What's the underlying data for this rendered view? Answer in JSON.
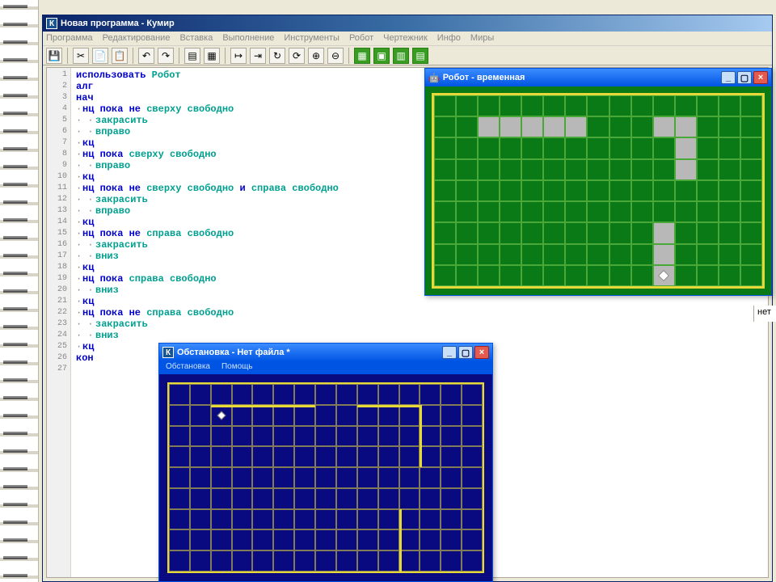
{
  "main": {
    "title": "Новая программа - Кумир",
    "icon_letter": "К",
    "menus": [
      "Программа",
      "Редактирование",
      "Вставка",
      "Выполнение",
      "Инструменты",
      "Робот",
      "Чертежник",
      "Инфо",
      "Миры"
    ]
  },
  "code": {
    "lines": [
      {
        "n": 1,
        "dot": "",
        "tokens": [
          {
            "t": "использовать ",
            "c": "kw-blue"
          },
          {
            "t": "Робот",
            "c": "kw-cyan"
          }
        ]
      },
      {
        "n": 2,
        "dot": "",
        "tokens": [
          {
            "t": "алг",
            "c": "kw-blue"
          }
        ]
      },
      {
        "n": 3,
        "dot": "",
        "tokens": [
          {
            "t": "нач",
            "c": "kw-blue"
          }
        ]
      },
      {
        "n": 4,
        "dot": "·",
        "tokens": [
          {
            "t": "нц пока не ",
            "c": "kw-blue"
          },
          {
            "t": "сверху свободно",
            "c": "kw-cyan"
          }
        ]
      },
      {
        "n": 5,
        "dot": "· ·",
        "tokens": [
          {
            "t": "закрасить",
            "c": "kw-cyan"
          }
        ]
      },
      {
        "n": 6,
        "dot": "· ·",
        "tokens": [
          {
            "t": "вправо",
            "c": "kw-cyan"
          }
        ]
      },
      {
        "n": 7,
        "dot": "·",
        "tokens": [
          {
            "t": "кц",
            "c": "kw-blue"
          }
        ]
      },
      {
        "n": 8,
        "dot": "·",
        "tokens": [
          {
            "t": "нц пока ",
            "c": "kw-blue"
          },
          {
            "t": "сверху свободно",
            "c": "kw-cyan"
          }
        ]
      },
      {
        "n": 9,
        "dot": "· ·",
        "tokens": [
          {
            "t": "вправо",
            "c": "kw-cyan"
          }
        ]
      },
      {
        "n": 10,
        "dot": "·",
        "tokens": [
          {
            "t": "кц",
            "c": "kw-blue"
          }
        ]
      },
      {
        "n": 11,
        "dot": "·",
        "tokens": [
          {
            "t": "нц пока не ",
            "c": "kw-blue"
          },
          {
            "t": "сверху свободно ",
            "c": "kw-cyan"
          },
          {
            "t": "и ",
            "c": "kw-blue"
          },
          {
            "t": "справа свободно",
            "c": "kw-cyan"
          }
        ]
      },
      {
        "n": 12,
        "dot": "· ·",
        "tokens": [
          {
            "t": "закрасить",
            "c": "kw-cyan"
          }
        ]
      },
      {
        "n": 13,
        "dot": "· ·",
        "tokens": [
          {
            "t": "вправо",
            "c": "kw-cyan"
          }
        ]
      },
      {
        "n": 14,
        "dot": "·",
        "tokens": [
          {
            "t": "кц",
            "c": "kw-blue"
          }
        ]
      },
      {
        "n": 15,
        "dot": "·",
        "tokens": [
          {
            "t": "нц пока не ",
            "c": "kw-blue"
          },
          {
            "t": "справа свободно",
            "c": "kw-cyan"
          }
        ]
      },
      {
        "n": 16,
        "dot": "· ·",
        "tokens": [
          {
            "t": "закрасить",
            "c": "kw-cyan"
          }
        ]
      },
      {
        "n": 17,
        "dot": "· ·",
        "tokens": [
          {
            "t": "вниз",
            "c": "kw-cyan"
          }
        ]
      },
      {
        "n": 18,
        "dot": "·",
        "tokens": [
          {
            "t": "кц",
            "c": "kw-blue"
          }
        ]
      },
      {
        "n": 19,
        "dot": "·",
        "tokens": [
          {
            "t": "нц пока ",
            "c": "kw-blue"
          },
          {
            "t": "справа свободно",
            "c": "kw-cyan"
          }
        ]
      },
      {
        "n": 20,
        "dot": "· ·",
        "tokens": [
          {
            "t": "вниз",
            "c": "kw-cyan"
          }
        ]
      },
      {
        "n": 21,
        "dot": "·",
        "tokens": [
          {
            "t": "кц",
            "c": "kw-blue"
          }
        ]
      },
      {
        "n": 22,
        "dot": "·",
        "tokens": [
          {
            "t": "нц пока не ",
            "c": "kw-blue"
          },
          {
            "t": "справа свободно",
            "c": "kw-cyan"
          }
        ]
      },
      {
        "n": 23,
        "dot": "· ·",
        "tokens": [
          {
            "t": "закрасить",
            "c": "kw-cyan"
          }
        ]
      },
      {
        "n": 24,
        "dot": "· ·",
        "tokens": [
          {
            "t": "вниз",
            "c": "kw-cyan"
          }
        ]
      },
      {
        "n": 25,
        "dot": "·",
        "tokens": [
          {
            "t": "кц",
            "c": "kw-blue"
          }
        ]
      },
      {
        "n": 26,
        "dot": "",
        "tokens": [
          {
            "t": "кон",
            "c": "kw-blue"
          }
        ]
      },
      {
        "n": 27,
        "dot": "",
        "tokens": []
      }
    ]
  },
  "robot_window": {
    "title": "Робот - временная",
    "icon": "robot-icon",
    "grid": {
      "cols": 15,
      "rows": 9
    },
    "filled_cells": [
      {
        "r": 1,
        "c": 2
      },
      {
        "r": 1,
        "c": 3
      },
      {
        "r": 1,
        "c": 4
      },
      {
        "r": 1,
        "c": 5
      },
      {
        "r": 1,
        "c": 6
      },
      {
        "r": 1,
        "c": 10
      },
      {
        "r": 1,
        "c": 11
      },
      {
        "r": 2,
        "c": 11
      },
      {
        "r": 3,
        "c": 11
      },
      {
        "r": 6,
        "c": 10
      },
      {
        "r": 7,
        "c": 10
      },
      {
        "r": 8,
        "c": 10
      }
    ],
    "diamond": {
      "r": 8,
      "c": 10
    },
    "colors": {
      "bg": "#0a7a16",
      "border": "#e6d838",
      "gridline": "#4aa838",
      "fill": "#b8b8b8"
    }
  },
  "obst_window": {
    "title": "Обстановка - Нет файла *",
    "icon_letter": "К",
    "menus": [
      "Обстановка",
      "Помощь"
    ],
    "grid": {
      "cols": 15,
      "rows": 9
    },
    "walls": [
      {
        "type": "h",
        "r": 1,
        "c1": 2,
        "c2": 7
      },
      {
        "type": "h",
        "r": 1,
        "c1": 9,
        "c2": 12
      },
      {
        "type": "v",
        "c": 12,
        "r1": 1,
        "r2": 4
      },
      {
        "type": "v",
        "c": 11,
        "r1": 6,
        "r2": 9
      }
    ],
    "diamond": {
      "r": 1.5,
      "c": 2.5
    },
    "colors": {
      "bg": "#0a0a80",
      "border": "#e6d838",
      "gridline": "#e6d838"
    }
  },
  "side_text": "нет",
  "toolbar_icons": [
    {
      "name": "save-icon",
      "glyph": "💾"
    },
    {
      "name": "cut-icon",
      "glyph": "✂"
    },
    {
      "name": "copy-icon",
      "glyph": "📄"
    },
    {
      "name": "paste-icon",
      "glyph": "📋"
    },
    {
      "name": "undo-icon",
      "glyph": "↶"
    },
    {
      "name": "redo-icon",
      "glyph": "↷"
    },
    {
      "name": "form1-icon",
      "glyph": "▤"
    },
    {
      "name": "form2-icon",
      "glyph": "▦"
    },
    {
      "name": "step1-icon",
      "glyph": "↦"
    },
    {
      "name": "step2-icon",
      "glyph": "⇥"
    },
    {
      "name": "loop1-icon",
      "glyph": "↻"
    },
    {
      "name": "loop2-icon",
      "glyph": "⟳"
    },
    {
      "name": "cond1-icon",
      "glyph": "⊕"
    },
    {
      "name": "cond2-icon",
      "glyph": "⊖"
    },
    {
      "name": "grid1-icon",
      "glyph": "▦",
      "green": true
    },
    {
      "name": "grid2-icon",
      "glyph": "▣",
      "green": true
    },
    {
      "name": "grid3-icon",
      "glyph": "▥",
      "green": true
    },
    {
      "name": "grid4-icon",
      "glyph": "▤",
      "green": true
    }
  ]
}
